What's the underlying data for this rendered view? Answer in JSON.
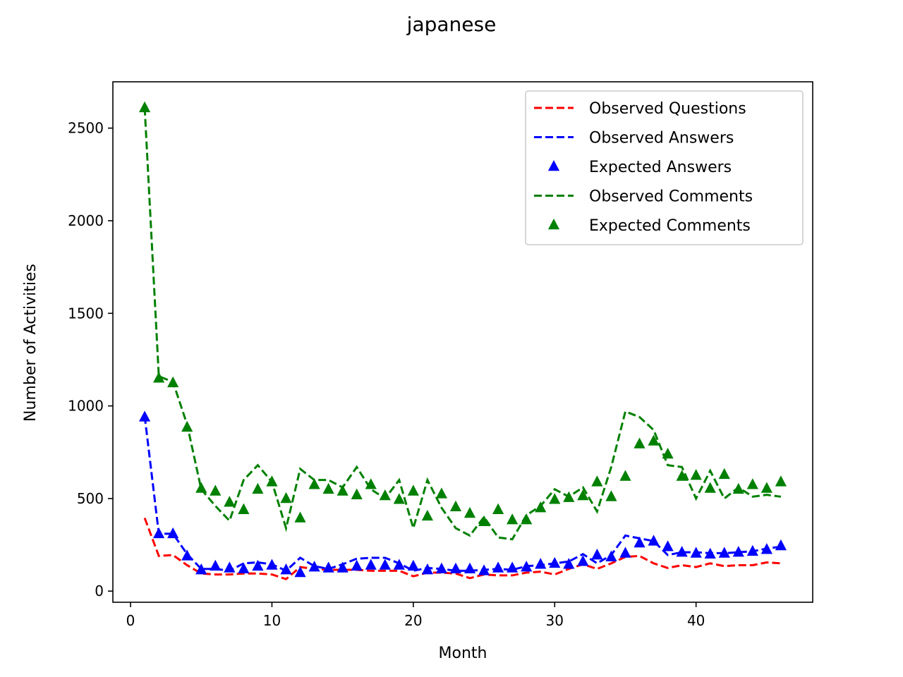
{
  "chart_data": {
    "type": "line",
    "title": "japanese",
    "xlabel": "Month",
    "ylabel": "Number of Activities",
    "xlim": [
      -1.25,
      48.25
    ],
    "ylim": [
      -60,
      2750
    ],
    "x_ticks": [
      0,
      10,
      20,
      30,
      40
    ],
    "y_ticks": [
      0,
      500,
      1000,
      1500,
      2000,
      2500
    ],
    "grid": false,
    "legend_position": "top-right",
    "x": [
      1,
      2,
      3,
      4,
      5,
      6,
      7,
      8,
      9,
      10,
      11,
      12,
      13,
      14,
      15,
      16,
      17,
      18,
      19,
      20,
      21,
      22,
      23,
      24,
      25,
      26,
      27,
      28,
      29,
      30,
      31,
      32,
      33,
      34,
      35,
      36,
      37,
      38,
      39,
      40,
      41,
      42,
      43,
      44,
      45,
      46
    ],
    "series": [
      {
        "name": "Observed Questions",
        "kind": "line",
        "color": "#ff0000",
        "values": [
          395,
          190,
          195,
          140,
          95,
          90,
          90,
          95,
          95,
          90,
          65,
          130,
          120,
          115,
          115,
          115,
          110,
          110,
          110,
          80,
          100,
          100,
          95,
          70,
          90,
          85,
          85,
          100,
          105,
          90,
          120,
          145,
          120,
          150,
          185,
          190,
          150,
          125,
          140,
          130,
          150,
          135,
          140,
          140,
          155,
          150
        ]
      },
      {
        "name": "Observed Answers",
        "kind": "line",
        "color": "#0000ff",
        "values": [
          945,
          310,
          310,
          200,
          120,
          120,
          110,
          150,
          155,
          145,
          110,
          180,
          135,
          120,
          145,
          175,
          180,
          180,
          150,
          110,
          125,
          120,
          110,
          110,
          115,
          120,
          115,
          135,
          140,
          150,
          160,
          200,
          150,
          195,
          300,
          285,
          270,
          195,
          210,
          210,
          205,
          205,
          210,
          215,
          230,
          240
        ]
      },
      {
        "name": "Expected Answers",
        "kind": "marker",
        "color": "#0000ff",
        "values": [
          940,
          310,
          310,
          190,
          115,
          135,
          125,
          120,
          135,
          140,
          115,
          100,
          130,
          125,
          125,
          135,
          140,
          140,
          140,
          135,
          115,
          120,
          120,
          120,
          110,
          125,
          125,
          130,
          145,
          150,
          145,
          160,
          195,
          185,
          205,
          260,
          270,
          240,
          210,
          205,
          200,
          205,
          210,
          215,
          225,
          245
        ]
      },
      {
        "name": "Observed Comments",
        "kind": "line",
        "color": "#008000",
        "values": [
          2610,
          1160,
          1130,
          900,
          550,
          460,
          380,
          600,
          680,
          590,
          340,
          660,
          600,
          600,
          560,
          670,
          550,
          500,
          600,
          340,
          600,
          450,
          340,
          300,
          400,
          290,
          280,
          410,
          460,
          550,
          510,
          560,
          430,
          670,
          970,
          940,
          870,
          680,
          670,
          500,
          650,
          500,
          560,
          510,
          520,
          510
        ]
      },
      {
        "name": "Expected Comments",
        "kind": "marker",
        "color": "#008000",
        "values": [
          2610,
          1150,
          1125,
          885,
          555,
          540,
          480,
          440,
          550,
          590,
          500,
          395,
          575,
          550,
          540,
          520,
          575,
          515,
          495,
          540,
          405,
          525,
          455,
          420,
          375,
          440,
          385,
          385,
          450,
          495,
          505,
          515,
          590,
          510,
          620,
          795,
          810,
          740,
          620,
          625,
          555,
          630,
          550,
          575,
          555,
          590
        ]
      }
    ]
  }
}
